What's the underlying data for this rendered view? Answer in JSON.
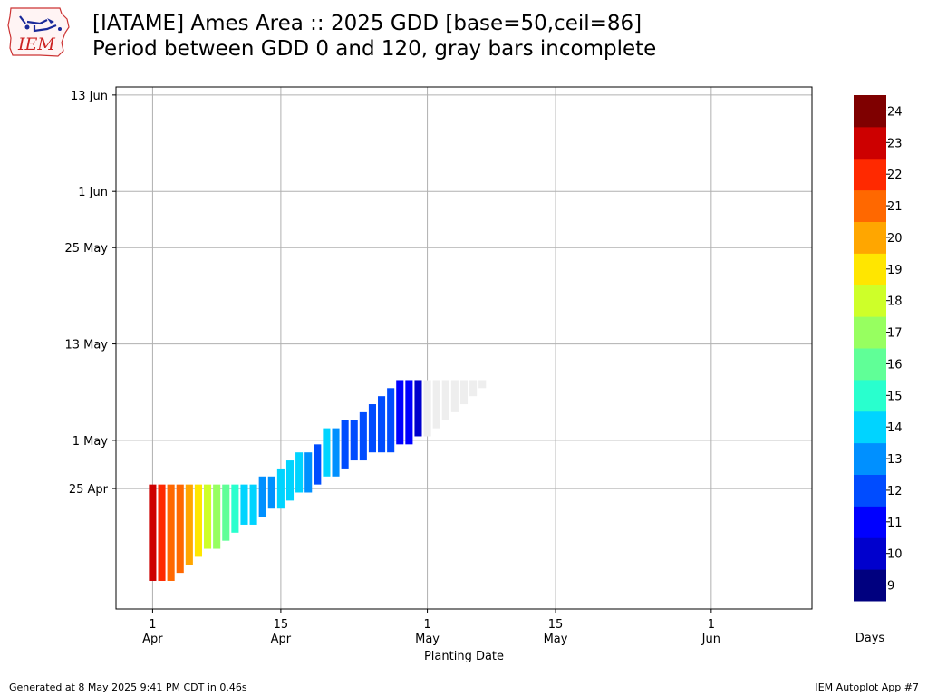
{
  "header": {
    "title": "[IATAME] Ames Area :: 2025 GDD [base=50,ceil=86]",
    "subtitle": "Period between GDD 0 and 120, gray bars incomplete",
    "logo_text": "IEM"
  },
  "footer": {
    "generated": "Generated at 8 May 2025 9:41 PM CDT in 0.46s",
    "app": "IEM Autoplot App #7"
  },
  "chart_data": {
    "type": "bar",
    "orientation": "floating-vertical",
    "xlabel": "Planting Date",
    "ylabel": "",
    "x_ticks": [
      {
        "date": "2025-04-01",
        "day": "1",
        "month": "Apr"
      },
      {
        "date": "2025-04-15",
        "day": "15",
        "month": "Apr"
      },
      {
        "date": "2025-05-01",
        "day": "1",
        "month": "May"
      },
      {
        "date": "2025-05-15",
        "day": "15",
        "month": "May"
      },
      {
        "date": "2025-06-01",
        "day": "1",
        "month": "Jun"
      }
    ],
    "y_ticks": [
      {
        "date": "2025-04-25",
        "label": "25 Apr"
      },
      {
        "date": "2025-05-01",
        "label": "1 May"
      },
      {
        "date": "2025-05-13",
        "label": "13 May"
      },
      {
        "date": "2025-05-25",
        "label": "25 May"
      },
      {
        "date": "2025-06-01",
        "label": "1 Jun"
      },
      {
        "date": "2025-06-13",
        "label": "13 Jun"
      }
    ],
    "xlim": [
      "2025-03-28",
      "2025-06-12"
    ],
    "ylim": [
      "2025-04-10",
      "2025-06-14"
    ],
    "grid": true,
    "colorbar": {
      "label": "Days",
      "ticks": [
        9,
        10,
        11,
        12,
        13,
        14,
        15,
        16,
        17,
        18,
        19,
        20,
        21,
        22,
        23,
        24
      ],
      "colors": [
        "#00007f",
        "#0000cd",
        "#0000ff",
        "#004cff",
        "#0090ff",
        "#00d4ff",
        "#29ffce",
        "#60ff97",
        "#97ff60",
        "#ceff29",
        "#ffe600",
        "#ffa600",
        "#ff6800",
        "#ff2900",
        "#cd0000",
        "#7f0000"
      ]
    },
    "series": [
      {
        "complete": true,
        "values": [
          {
            "planting": "2025-04-01",
            "start": "2025-04-14",
            "end": "2025-04-25",
            "days": 23
          },
          {
            "planting": "2025-04-02",
            "start": "2025-04-14",
            "end": "2025-04-25",
            "days": 22
          },
          {
            "planting": "2025-04-03",
            "start": "2025-04-14",
            "end": "2025-04-25",
            "days": 21
          },
          {
            "planting": "2025-04-04",
            "start": "2025-04-15",
            "end": "2025-04-25",
            "days": 21
          },
          {
            "planting": "2025-04-05",
            "start": "2025-04-16",
            "end": "2025-04-25",
            "days": 20
          },
          {
            "planting": "2025-04-06",
            "start": "2025-04-17",
            "end": "2025-04-25",
            "days": 19
          },
          {
            "planting": "2025-04-07",
            "start": "2025-04-18",
            "end": "2025-04-25",
            "days": 18
          },
          {
            "planting": "2025-04-08",
            "start": "2025-04-18",
            "end": "2025-04-25",
            "days": 17
          },
          {
            "planting": "2025-04-09",
            "start": "2025-04-19",
            "end": "2025-04-25",
            "days": 16
          },
          {
            "planting": "2025-04-10",
            "start": "2025-04-20",
            "end": "2025-04-25",
            "days": 15
          },
          {
            "planting": "2025-04-11",
            "start": "2025-04-21",
            "end": "2025-04-25",
            "days": 14
          },
          {
            "planting": "2025-04-12",
            "start": "2025-04-21",
            "end": "2025-04-25",
            "days": 14
          },
          {
            "planting": "2025-04-13",
            "start": "2025-04-22",
            "end": "2025-04-26",
            "days": 13
          },
          {
            "planting": "2025-04-14",
            "start": "2025-04-23",
            "end": "2025-04-26",
            "days": 13
          },
          {
            "planting": "2025-04-15",
            "start": "2025-04-23",
            "end": "2025-04-27",
            "days": 14
          },
          {
            "planting": "2025-04-16",
            "start": "2025-04-24",
            "end": "2025-04-28",
            "days": 14
          },
          {
            "planting": "2025-04-17",
            "start": "2025-04-25",
            "end": "2025-04-29",
            "days": 14
          },
          {
            "planting": "2025-04-18",
            "start": "2025-04-25",
            "end": "2025-04-29",
            "days": 13
          },
          {
            "planting": "2025-04-19",
            "start": "2025-04-26",
            "end": "2025-04-30",
            "days": 12
          },
          {
            "planting": "2025-04-20",
            "start": "2025-04-27",
            "end": "2025-05-02",
            "days": 14
          },
          {
            "planting": "2025-04-21",
            "start": "2025-04-27",
            "end": "2025-05-02",
            "days": 13
          },
          {
            "planting": "2025-04-22",
            "start": "2025-04-28",
            "end": "2025-05-03",
            "days": 12
          },
          {
            "planting": "2025-04-23",
            "start": "2025-04-29",
            "end": "2025-05-03",
            "days": 12
          },
          {
            "planting": "2025-04-24",
            "start": "2025-04-29",
            "end": "2025-05-04",
            "days": 12
          },
          {
            "planting": "2025-04-25",
            "start": "2025-04-30",
            "end": "2025-05-05",
            "days": 12
          },
          {
            "planting": "2025-04-26",
            "start": "2025-04-30",
            "end": "2025-05-06",
            "days": 12
          },
          {
            "planting": "2025-04-27",
            "start": "2025-04-30",
            "end": "2025-05-07",
            "days": 12
          },
          {
            "planting": "2025-04-28",
            "start": "2025-05-01",
            "end": "2025-05-08",
            "days": 11
          },
          {
            "planting": "2025-04-29",
            "start": "2025-05-01",
            "end": "2025-05-08",
            "days": 11
          },
          {
            "planting": "2025-04-30",
            "start": "2025-05-02",
            "end": "2025-05-08",
            "days": 10
          }
        ]
      },
      {
        "complete": false,
        "values": [
          {
            "planting": "2025-05-01",
            "start": "2025-05-02",
            "end": "2025-05-08"
          },
          {
            "planting": "2025-05-02",
            "start": "2025-05-03",
            "end": "2025-05-08"
          },
          {
            "planting": "2025-05-03",
            "start": "2025-05-04",
            "end": "2025-05-08"
          },
          {
            "planting": "2025-05-04",
            "start": "2025-05-05",
            "end": "2025-05-08"
          },
          {
            "planting": "2025-05-05",
            "start": "2025-05-06",
            "end": "2025-05-08"
          },
          {
            "planting": "2025-05-06",
            "start": "2025-05-07",
            "end": "2025-05-08"
          },
          {
            "planting": "2025-05-07",
            "start": "2025-05-08",
            "end": "2025-05-08"
          }
        ]
      }
    ]
  }
}
